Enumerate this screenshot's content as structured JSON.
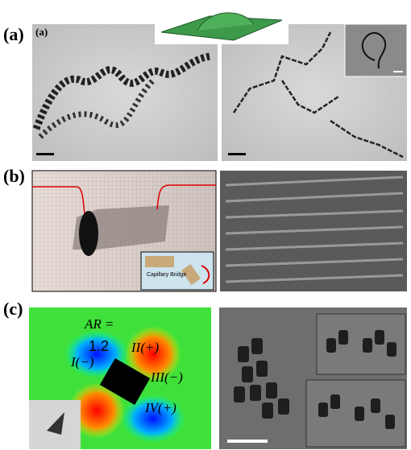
{
  "panels": [
    {
      "label": "(a)",
      "sublabel": "(a)"
    },
    {
      "label": "(b)",
      "inset_text": "Capillary Bridge"
    },
    {
      "label": "(c)",
      "ar_label": "AR =",
      "ar_value": "1.2",
      "regions": [
        "I(−)",
        "II(+)",
        "III(−)",
        "IV(+)"
      ]
    }
  ]
}
